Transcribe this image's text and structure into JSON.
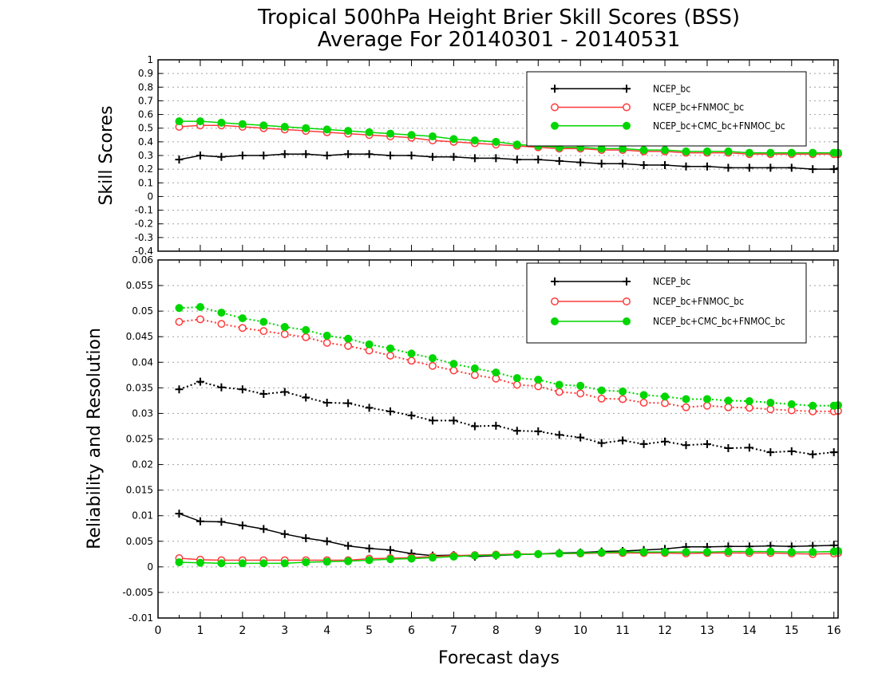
{
  "title_line1": "Tropical 500hPa Height Brier Skill Scores (BSS)",
  "title_line2": "Average For 20140301 - 20140531",
  "colors": {
    "ncep_bc": "#000000",
    "ncep_fnmoc": "#ff3a3a",
    "ncep_cmc_fnmoc": "#00d600",
    "grid": "#a0a0a0"
  },
  "chart_data": [
    {
      "type": "line",
      "ylabel": "Skill Scores",
      "xlim": [
        0,
        16.1
      ],
      "ylim": [
        -0.4,
        1
      ],
      "yticks": [
        "-0.4",
        "-0.3",
        "-0.2",
        "-0.1",
        "0",
        "0.1",
        "0.2",
        "0.3",
        "0.4",
        "0.5",
        "0.6",
        "0.7",
        "0.8",
        "0.9",
        "1"
      ],
      "grid": "horizontal dotted",
      "legend_position": "top-right",
      "x": [
        0.5,
        1,
        1.5,
        2,
        2.5,
        3,
        3.5,
        4,
        4.5,
        5,
        5.5,
        6,
        6.5,
        7,
        7.5,
        8,
        8.5,
        9,
        9.5,
        10,
        10.5,
        11,
        11.5,
        12,
        12.5,
        13,
        13.5,
        14,
        14.5,
        15,
        15.5,
        16,
        16.1
      ],
      "series": [
        {
          "name": "NCEP_bc",
          "marker": "plus",
          "values": [
            0.27,
            0.3,
            0.29,
            0.3,
            0.3,
            0.31,
            0.31,
            0.3,
            0.31,
            0.31,
            0.3,
            0.3,
            0.29,
            0.29,
            0.28,
            0.28,
            0.27,
            0.27,
            0.26,
            0.25,
            0.24,
            0.24,
            0.23,
            0.23,
            0.22,
            0.22,
            0.21,
            0.21,
            0.21,
            0.21,
            0.2,
            0.2,
            0.21
          ]
        },
        {
          "name": "NCEP_bc+FNMOC_bc",
          "marker": "open-circle",
          "values": [
            0.51,
            0.52,
            0.52,
            0.51,
            0.5,
            0.49,
            0.48,
            0.47,
            0.46,
            0.45,
            0.44,
            0.43,
            0.41,
            0.4,
            0.39,
            0.38,
            0.37,
            0.36,
            0.35,
            0.35,
            0.34,
            0.34,
            0.33,
            0.33,
            0.32,
            0.32,
            0.32,
            0.31,
            0.31,
            0.31,
            0.31,
            0.31,
            0.31
          ]
        },
        {
          "name": "NCEP_bc+CMC_bc+FNMOC_bc",
          "marker": "filled-circle",
          "values": [
            0.55,
            0.55,
            0.54,
            0.53,
            0.52,
            0.51,
            0.5,
            0.49,
            0.48,
            0.47,
            0.46,
            0.45,
            0.44,
            0.42,
            0.41,
            0.4,
            0.38,
            0.37,
            0.36,
            0.36,
            0.35,
            0.35,
            0.34,
            0.34,
            0.33,
            0.33,
            0.33,
            0.32,
            0.32,
            0.32,
            0.32,
            0.32,
            0.32
          ]
        }
      ]
    },
    {
      "type": "line",
      "ylabel": "Reliability and Resolution",
      "xlabel": "Forecast days",
      "xlim": [
        0,
        16.1
      ],
      "ylim": [
        -0.01,
        0.06
      ],
      "yticks": [
        "-0.01",
        "-0.005",
        "0",
        "0.005",
        "0.01",
        "0.015",
        "0.02",
        "0.025",
        "0.03",
        "0.035",
        "0.04",
        "0.045",
        "0.05",
        "0.055",
        "0.06"
      ],
      "xticks": [
        "0",
        "1",
        "2",
        "3",
        "4",
        "5",
        "6",
        "7",
        "8",
        "9",
        "10",
        "11",
        "12",
        "13",
        "14",
        "15",
        "16"
      ],
      "grid": "horizontal dotted",
      "legend_position": "top-right",
      "x": [
        0.5,
        1,
        1.5,
        2,
        2.5,
        3,
        3.5,
        4,
        4.5,
        5,
        5.5,
        6,
        6.5,
        7,
        7.5,
        8,
        8.5,
        9,
        9.5,
        10,
        10.5,
        11,
        11.5,
        12,
        12.5,
        13,
        13.5,
        14,
        14.5,
        15,
        15.5,
        16,
        16.1
      ],
      "series": [
        {
          "name": "NCEP_bc",
          "kind": "resolution",
          "style": "dotted",
          "marker": "plus",
          "values": [
            0.0347,
            0.0362,
            0.0351,
            0.0347,
            0.0338,
            0.0342,
            0.0331,
            0.0321,
            0.032,
            0.0311,
            0.0304,
            0.0296,
            0.0286,
            0.0286,
            0.0275,
            0.0276,
            0.0266,
            0.0265,
            0.0258,
            0.0253,
            0.0242,
            0.0247,
            0.024,
            0.0245,
            0.0238,
            0.024,
            0.0232,
            0.0233,
            0.0224,
            0.0226,
            0.022,
            0.0224,
            0.0225
          ]
        },
        {
          "name": "NCEP_bc+FNMOC_bc",
          "kind": "resolution",
          "style": "dotted",
          "marker": "open-circle",
          "values": [
            0.0479,
            0.0484,
            0.0475,
            0.0467,
            0.0461,
            0.0455,
            0.0449,
            0.0438,
            0.0432,
            0.0423,
            0.0413,
            0.0403,
            0.0393,
            0.0384,
            0.0375,
            0.0368,
            0.0356,
            0.0353,
            0.0342,
            0.0339,
            0.0329,
            0.0328,
            0.0321,
            0.032,
            0.0312,
            0.0315,
            0.0312,
            0.0311,
            0.0308,
            0.0306,
            0.0304,
            0.0304,
            0.0305
          ]
        },
        {
          "name": "NCEP_bc+CMC_bc+FNMOC_bc",
          "kind": "resolution",
          "style": "dotted",
          "marker": "filled-circle",
          "values": [
            0.0506,
            0.0508,
            0.0497,
            0.0486,
            0.0479,
            0.0469,
            0.0463,
            0.0452,
            0.0446,
            0.0435,
            0.0427,
            0.0417,
            0.0408,
            0.0397,
            0.0388,
            0.038,
            0.0369,
            0.0366,
            0.0356,
            0.0354,
            0.0345,
            0.0343,
            0.0336,
            0.0333,
            0.0328,
            0.0328,
            0.0325,
            0.0324,
            0.0321,
            0.0318,
            0.0315,
            0.0315,
            0.0316
          ]
        },
        {
          "name": "NCEP_bc",
          "kind": "reliability",
          "style": "solid",
          "marker": "plus",
          "values": [
            0.0104,
            0.0089,
            0.0088,
            0.0081,
            0.0074,
            0.0064,
            0.0056,
            0.005,
            0.0041,
            0.0036,
            0.0033,
            0.0026,
            0.0022,
            0.0023,
            0.002,
            0.0022,
            0.0024,
            0.0025,
            0.0027,
            0.0028,
            0.003,
            0.0031,
            0.0033,
            0.0035,
            0.0039,
            0.0039,
            0.004,
            0.004,
            0.0041,
            0.004,
            0.0041,
            0.0042,
            0.0042
          ]
        },
        {
          "name": "NCEP_bc+FNMOC_bc",
          "kind": "reliability",
          "style": "solid",
          "marker": "open-circle",
          "values": [
            0.0017,
            0.0014,
            0.0013,
            0.0013,
            0.0013,
            0.0013,
            0.0013,
            0.0013,
            0.0013,
            0.0016,
            0.0017,
            0.0018,
            0.002,
            0.0022,
            0.0023,
            0.0024,
            0.0025,
            0.0025,
            0.0026,
            0.0026,
            0.0027,
            0.0027,
            0.0027,
            0.0027,
            0.0026,
            0.0027,
            0.0027,
            0.0027,
            0.0027,
            0.0026,
            0.0025,
            0.0026,
            0.0027
          ]
        },
        {
          "name": "NCEP_bc+CMC_bc+FNMOC_bc",
          "kind": "reliability",
          "style": "solid",
          "marker": "filled-circle",
          "values": [
            0.0009,
            0.0008,
            0.0007,
            0.0007,
            0.0007,
            0.0007,
            0.0009,
            0.001,
            0.0011,
            0.0013,
            0.0015,
            0.0016,
            0.0018,
            0.002,
            0.0022,
            0.0023,
            0.0024,
            0.0025,
            0.0026,
            0.0027,
            0.0028,
            0.0029,
            0.0029,
            0.0029,
            0.0029,
            0.0029,
            0.003,
            0.003,
            0.003,
            0.0029,
            0.0029,
            0.003,
            0.0031
          ]
        }
      ]
    }
  ]
}
